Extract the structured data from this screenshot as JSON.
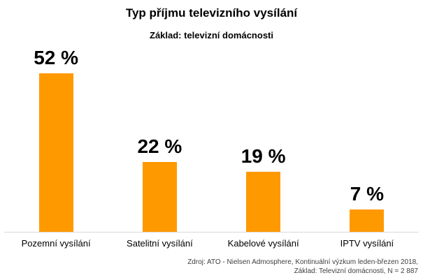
{
  "title": "Typ příjmu televizního vysílání",
  "subtitle": "Základ: televizní domácnosti",
  "footer": {
    "line1": "Zdroj: ATO - Nielsen Admosphere, Kontinuální výzkum leden-březen 2018,",
    "line2": "Základ: Televizní domácnosti, N = 2 887"
  },
  "colors": {
    "bar": "#FF9900",
    "axis_line": "#D9D9D9",
    "text": "#000000",
    "footer_text": "#404040",
    "background": "#FFFFFF"
  },
  "chart_data": {
    "type": "bar",
    "title": "Typ příjmu televizního vysílání",
    "subtitle": "Základ: televizní domácnosti",
    "categories": [
      "Pozemní vysílání",
      "Satelitní vysílání",
      "Kabelové vysílání",
      "IPTV vysílání"
    ],
    "values": [
      52,
      22,
      19,
      7
    ],
    "value_labels": [
      "52 %",
      "22 %",
      "19 %",
      "7 %"
    ],
    "unit": "%",
    "xlabel": "",
    "ylabel": "",
    "ylim": [
      0,
      58
    ],
    "grid": false,
    "legend": false,
    "bar_color": "#FF9900",
    "source_line1": "Zdroj: ATO - Nielsen Admosphere, Kontinuální výzkum leden-březen 2018,",
    "source_line2": "Základ: Televizní domácnosti, N = 2 887"
  }
}
